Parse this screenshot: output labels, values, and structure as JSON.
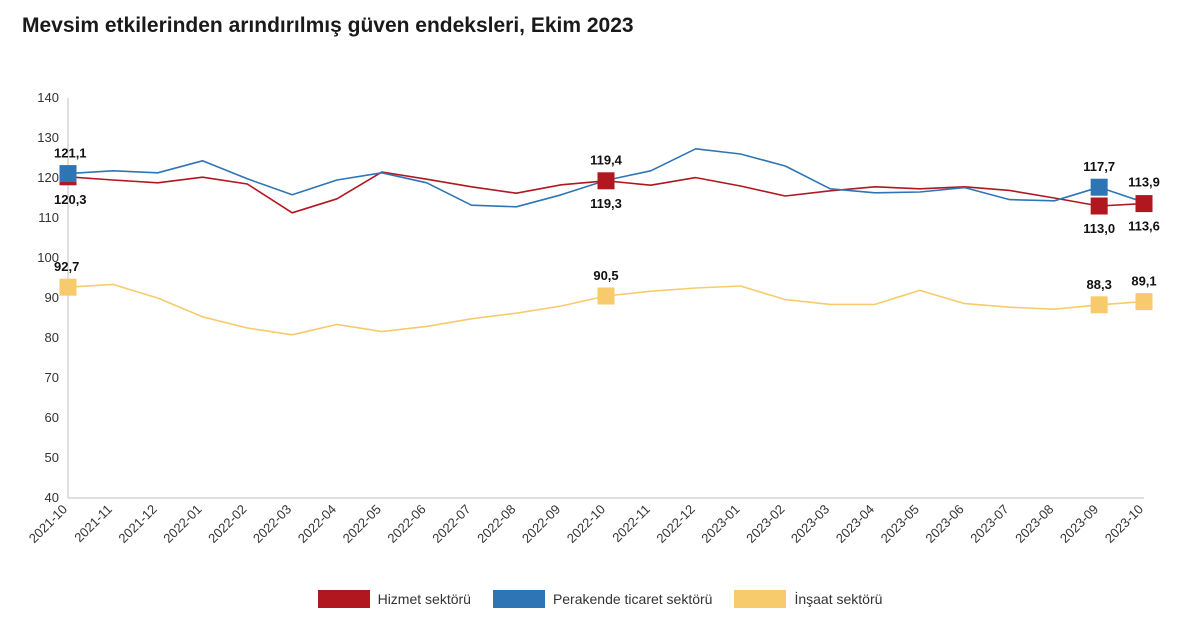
{
  "chart_data": {
    "type": "line",
    "title": "Mevsim etkilerinden arındırılmış güven endeksleri, Ekim 2023",
    "categories": [
      "2021-10",
      "2021-11",
      "2021-12",
      "2022-01",
      "2022-02",
      "2022-03",
      "2022-04",
      "2022-05",
      "2022-06",
      "2022-07",
      "2022-08",
      "2022-09",
      "2022-10",
      "2022-11",
      "2022-12",
      "2023-01",
      "2023-02",
      "2023-03",
      "2023-04",
      "2023-05",
      "2023-06",
      "2023-07",
      "2023-08",
      "2023-09",
      "2023-10"
    ],
    "ylim": [
      40,
      140
    ],
    "yticks": [
      "40",
      "50",
      "60",
      "70",
      "80",
      "90",
      "100",
      "110",
      "120",
      "130",
      "140"
    ],
    "grid": false,
    "legend_position": "bottom",
    "series": [
      {
        "name": "Hizmet sektörü",
        "color": "#b0171f",
        "values": [
          120.3,
          119.5,
          118.8,
          120.2,
          118.5,
          111.3,
          114.8,
          121.5,
          119.7,
          117.8,
          116.2,
          118.3,
          119.3,
          118.2,
          120.1,
          118.0,
          115.5,
          116.8,
          117.8,
          117.3,
          117.8,
          116.9,
          115.0,
          113.0,
          113.6
        ],
        "labels": [
          {
            "index": 0,
            "text": "120,3",
            "pos": "below"
          },
          {
            "index": 12,
            "text": "119,3",
            "pos": "below"
          },
          {
            "index": 23,
            "text": "113,0",
            "pos": "below"
          },
          {
            "index": 24,
            "text": "113,6",
            "pos": "below"
          }
        ],
        "markers": [
          0,
          12,
          23,
          24
        ]
      },
      {
        "name": "Perakende ticaret sektörü",
        "color": "#2e75b6",
        "values": [
          121.1,
          121.8,
          121.3,
          124.3,
          119.8,
          115.8,
          119.5,
          121.3,
          118.8,
          113.2,
          112.8,
          115.8,
          119.4,
          121.8,
          127.3,
          126.0,
          123.0,
          117.3,
          116.3,
          116.5,
          117.6,
          114.6,
          114.3,
          117.7,
          113.9
        ],
        "labels": [
          {
            "index": 0,
            "text": "121,1",
            "pos": "above"
          },
          {
            "index": 12,
            "text": "119,4",
            "pos": "above"
          },
          {
            "index": 23,
            "text": "117,7",
            "pos": "above"
          },
          {
            "index": 24,
            "text": "113,9",
            "pos": "above"
          }
        ],
        "markers": [
          0,
          23
        ]
      },
      {
        "name": "İnşaat sektörü",
        "color": "#f7cb6b",
        "values": [
          92.7,
          93.4,
          90.0,
          85.3,
          82.5,
          80.8,
          83.4,
          81.6,
          82.9,
          84.8,
          86.2,
          88.0,
          90.5,
          91.7,
          92.5,
          93.0,
          89.6,
          88.4,
          88.4,
          91.9,
          88.6,
          87.7,
          87.2,
          88.3,
          89.1
        ],
        "labels": [
          {
            "index": 0,
            "text": "92,7",
            "pos": "above"
          },
          {
            "index": 12,
            "text": "90,5",
            "pos": "above"
          },
          {
            "index": 23,
            "text": "88,3",
            "pos": "above"
          },
          {
            "index": 24,
            "text": "89,1",
            "pos": "above"
          }
        ],
        "markers": [
          0,
          12,
          23,
          24
        ]
      }
    ]
  }
}
